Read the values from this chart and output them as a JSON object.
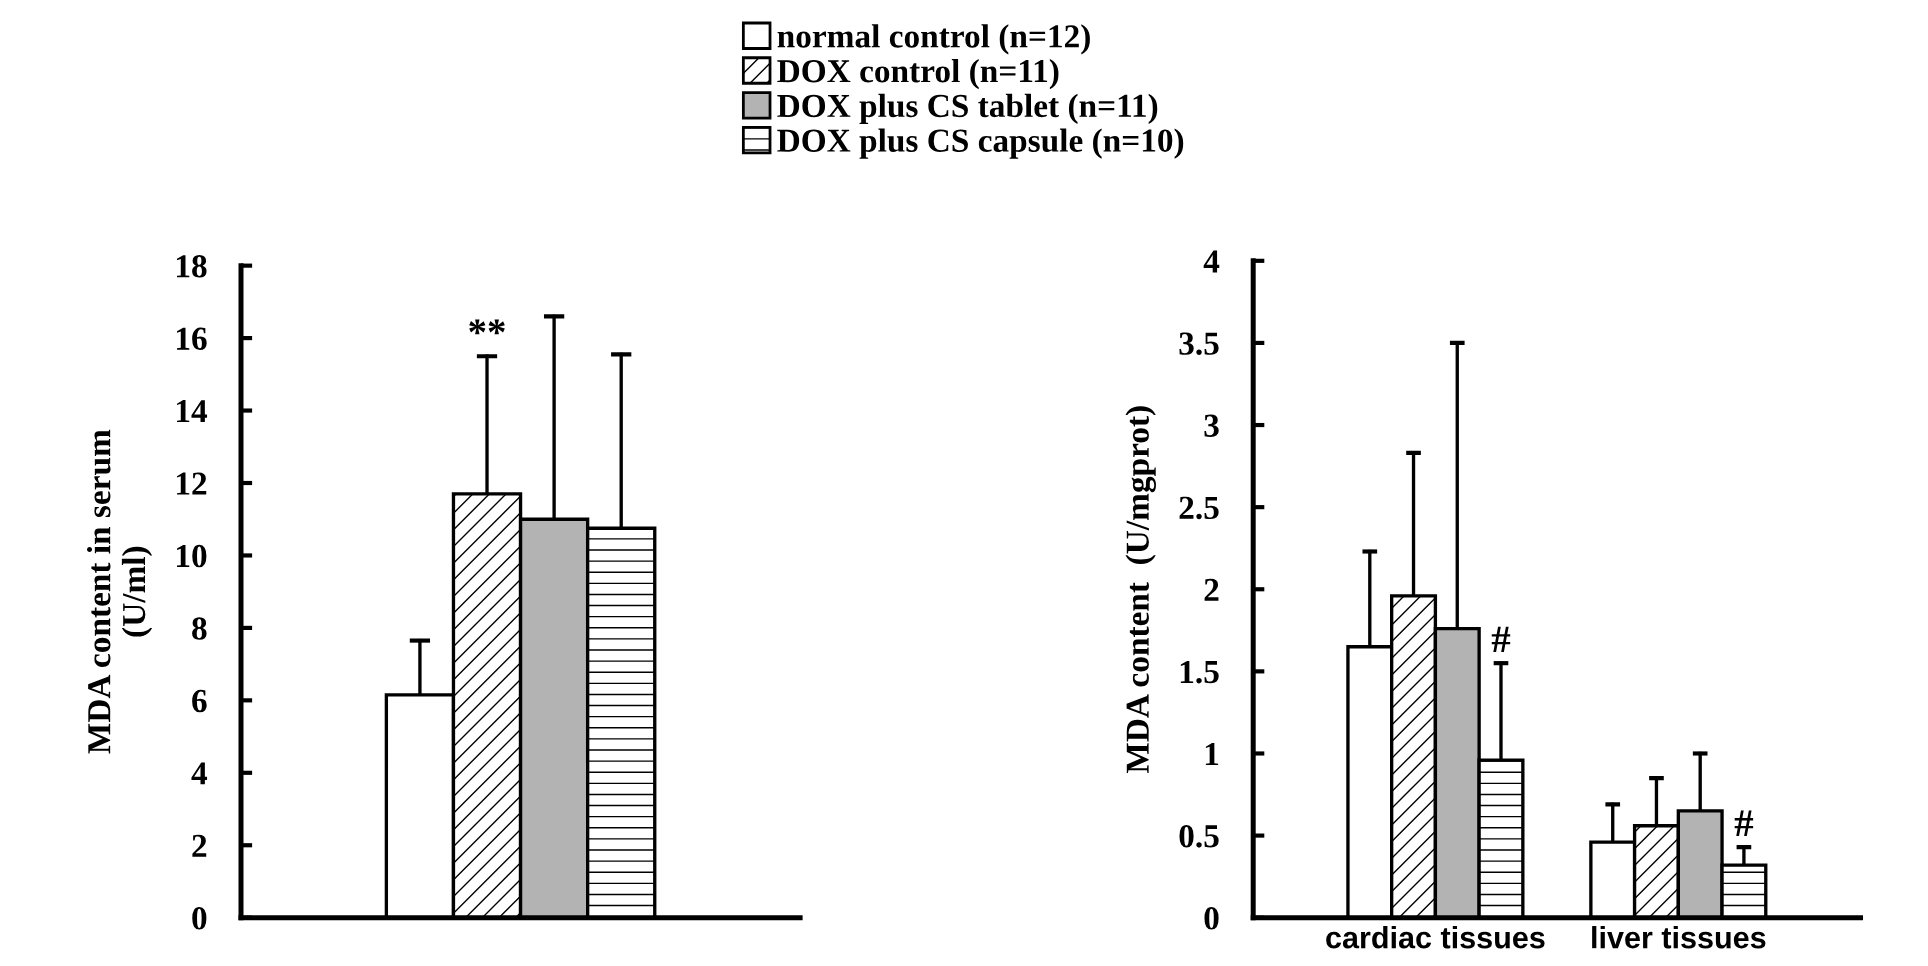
{
  "chart_data": [
    {
      "type": "bar",
      "ylabel": "MDA content in serum\n(U/ml)",
      "categories": [
        null
      ],
      "ylim": [
        0,
        18
      ],
      "yticks": [
        0,
        2,
        4,
        6,
        8,
        10,
        12,
        14,
        16,
        18
      ],
      "grid": false,
      "legend": "top",
      "series": [
        {
          "name": "normal control (n=12)",
          "color": "#ffffff",
          "values": [
            6.15
          ],
          "errors": [
            [
              6.15,
              7.65
            ]
          ]
        },
        {
          "name": "DOX control (n=11)",
          "color": "#000000",
          "values": [
            11.7
          ],
          "errors": [
            [
              11.7,
              15.5
            ]
          ]
        },
        {
          "name": "DOX plus CS tablet (n=11)",
          "color": "#b3b3b3",
          "values": [
            11.0
          ],
          "errors": [
            [
              11.0,
              16.6
            ]
          ]
        },
        {
          "name": "DOX plus CS capsule (n=10)",
          "color": "#000000",
          "values": [
            10.75
          ],
          "errors": [
            [
              10.75,
              15.55
            ]
          ]
        }
      ],
      "annotations": [
        {
          "text": "**",
          "y": 15.5
        }
      ]
    },
    {
      "type": "bar",
      "ylabel": "MDA content  (U/mgprot)",
      "categories": [
        "cardiac tissues",
        "liver tissues"
      ],
      "ylim": [
        0,
        4
      ],
      "yticks": [
        0,
        0.5,
        1,
        1.5,
        2,
        2.5,
        3,
        3.5,
        4
      ],
      "grid": false,
      "legend": false,
      "series": [
        {
          "color": "#ffffff",
          "values": [
            1.65,
            0.46
          ],
          "errors": [
            [
              1.65,
              2.23
            ],
            [
              0.46,
              0.69
            ]
          ]
        },
        {
          "color": "#000000",
          "values": [
            1.96,
            0.56
          ],
          "errors": [
            [
              1.96,
              2.83
            ],
            [
              0.56,
              0.85
            ]
          ]
        },
        {
          "color": "#b3b3b3",
          "values": [
            1.76,
            0.65
          ],
          "errors": [
            [
              1.76,
              3.5
            ],
            [
              0.65,
              1.0
            ]
          ]
        },
        {
          "color": "#000000",
          "values": [
            0.96,
            0.32
          ],
          "errors": [
            [
              0.96,
              1.55
            ],
            [
              0.32,
              0.43
            ]
          ]
        }
      ],
      "annotations": [
        {
          "text": "#",
          "x": "cardiac tissues",
          "y": 1.55
        },
        {
          "text": "#",
          "x": "liver tissues",
          "y": 0.43
        }
      ]
    }
  ]
}
